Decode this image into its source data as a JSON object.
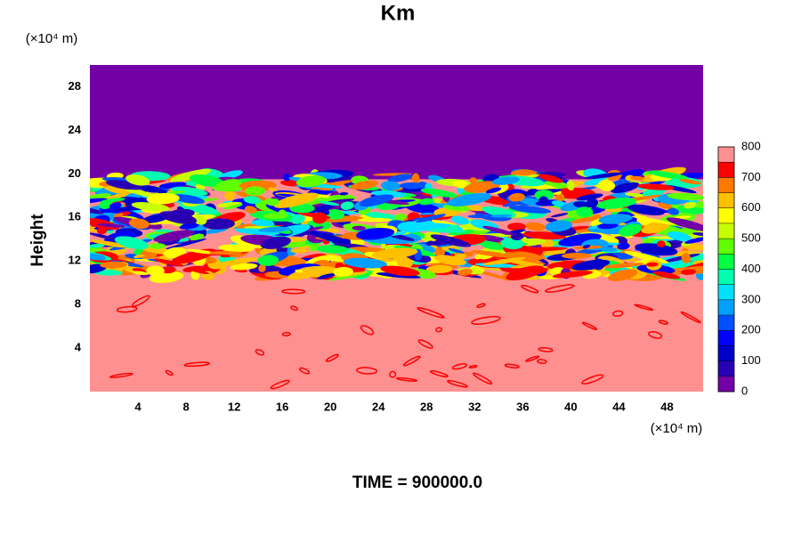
{
  "chart_data": {
    "type": "contour",
    "title": "Km",
    "y_label": "Height",
    "y_unit": "(×10⁴ m)",
    "x_unit": "(×10⁴ m)",
    "footer": "TIME = 900000.0",
    "xlim": [
      0,
      51
    ],
    "xticks": [
      4,
      8,
      12,
      16,
      20,
      24,
      28,
      32,
      36,
      40,
      44,
      48
    ],
    "ylim": [
      0,
      30
    ],
    "yticks": [
      4,
      8,
      12,
      16,
      20,
      24,
      28
    ],
    "colorbar": {
      "lim": [
        0,
        800
      ],
      "ticks": [
        0,
        100,
        200,
        300,
        400,
        500,
        600,
        700,
        800
      ],
      "colors": [
        "#7300a6",
        "#2800b4",
        "#0000c8",
        "#0000ff",
        "#0050ff",
        "#00a0ff",
        "#00e0ff",
        "#00ffb0",
        "#00ff40",
        "#60ff00",
        "#c8ff00",
        "#ffff00",
        "#ffc000",
        "#ff7800",
        "#ff0000",
        "#ff9090"
      ]
    }
  }
}
